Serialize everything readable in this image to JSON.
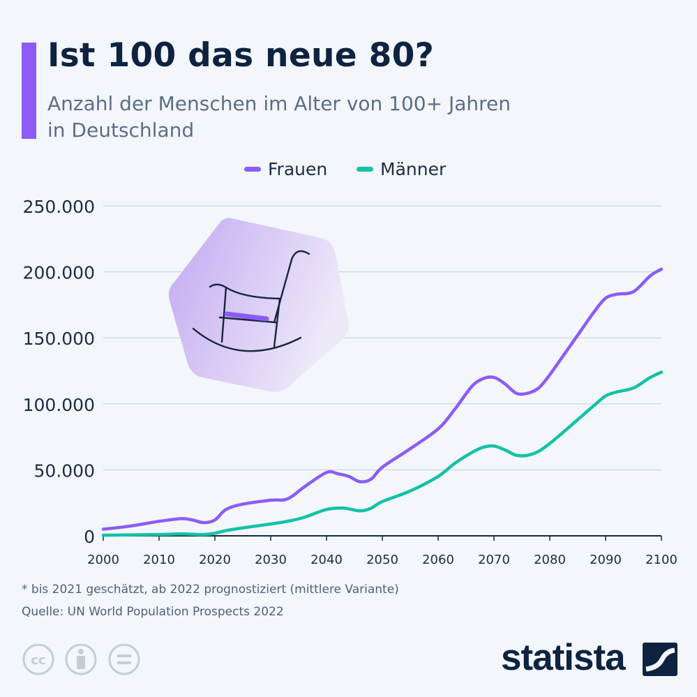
{
  "header": {
    "title": "Ist 100 das neue 80?",
    "subtitle_line1": "Anzahl der Menschen im Alter von 100+ Jahren",
    "subtitle_line2": "in Deutschland"
  },
  "chart_data": {
    "type": "line",
    "title": "Ist 100 das neue 80?",
    "subtitle": "Anzahl der Menschen im Alter von 100+ Jahren in Deutschland",
    "xlabel": "",
    "ylabel": "",
    "xlim": [
      2000,
      2100
    ],
    "ylim": [
      0,
      250000
    ],
    "x_ticks": [
      "2000",
      "2010",
      "2020",
      "2030",
      "2040",
      "2050",
      "2060",
      "2070",
      "2080",
      "2090",
      "2100"
    ],
    "y_ticks": [
      "0",
      "50.000",
      "100.000",
      "150.000",
      "200.000",
      "250.000"
    ],
    "y_tick_values": [
      0,
      50000,
      100000,
      150000,
      200000,
      250000
    ],
    "legend_position": "top-center",
    "grid": true,
    "series": [
      {
        "name": "Frauen",
        "color": "#8b5cf6",
        "x": [
          2000,
          2005,
          2010,
          2014,
          2016,
          2018,
          2020,
          2022,
          2025,
          2030,
          2033,
          2036,
          2040,
          2042,
          2044,
          2046,
          2048,
          2050,
          2055,
          2060,
          2063,
          2066,
          2068,
          2070,
          2072,
          2074,
          2076,
          2078,
          2080,
          2082,
          2085,
          2088,
          2090,
          2092,
          2095,
          2098,
          2100
        ],
        "values": [
          5000,
          7500,
          11000,
          13000,
          12000,
          10000,
          12000,
          20000,
          24000,
          27000,
          28000,
          37000,
          48000,
          47000,
          45000,
          41000,
          43000,
          52000,
          66000,
          81000,
          96000,
          113000,
          119000,
          120000,
          115000,
          108000,
          108000,
          112000,
          122000,
          134000,
          152000,
          170000,
          180000,
          183000,
          185000,
          197000,
          202000
        ]
      },
      {
        "name": "Männer",
        "color": "#13c1a8",
        "x": [
          2000,
          2010,
          2014,
          2018,
          2020,
          2022,
          2025,
          2030,
          2033,
          2036,
          2040,
          2043,
          2046,
          2048,
          2050,
          2055,
          2060,
          2063,
          2066,
          2068,
          2070,
          2072,
          2074,
          2076,
          2078,
          2080,
          2082,
          2085,
          2088,
          2090,
          2092,
          2095,
          2098,
          2100
        ],
        "values": [
          500,
          1000,
          1500,
          1000,
          2000,
          4000,
          6000,
          9000,
          11000,
          14000,
          20000,
          21000,
          19000,
          21000,
          26000,
          34000,
          45000,
          55000,
          63000,
          67000,
          68000,
          65000,
          61000,
          61000,
          64000,
          70000,
          77000,
          88000,
          99000,
          106000,
          109000,
          112000,
          120000,
          124000
        ]
      }
    ]
  },
  "footnotes": {
    "note": "* bis 2021 geschätzt, ab 2022 prognostiziert (mittlere Variante)",
    "source": "Quelle: UN World Population Prospects 2022"
  },
  "branding": {
    "logo_text": "statista",
    "license_icons": [
      "cc-icon",
      "attribution-icon",
      "no-derivatives-icon"
    ]
  },
  "colors": {
    "accent": "#8b5cf6",
    "frauen": "#8b5cf6",
    "maenner": "#13c1a8",
    "title": "#0e2340",
    "grid": "#c7cdd6"
  }
}
